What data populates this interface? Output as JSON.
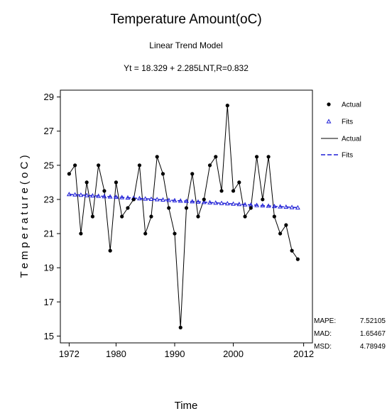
{
  "chart_data": {
    "type": "line",
    "title": "Temperature Amount(oC)",
    "subtitle": "Linear Trend Model",
    "equation": "Yt = 18.329 + 2.285LNT,R=0.832",
    "xlabel": "Time",
    "ylabel": "T e m p e r a t u r e ( o C )",
    "xlim": [
      1970.5,
      2013.5
    ],
    "ylim": [
      14.6,
      29.4
    ],
    "xticks": [
      1972,
      1980,
      1990,
      2000,
      2012
    ],
    "yticks": [
      15,
      17,
      19,
      21,
      23,
      25,
      27,
      29
    ],
    "grid": false,
    "legend_position": "right",
    "colors": {
      "actual": "#000000",
      "fits": "#1f1fd6"
    },
    "x": [
      1972,
      1973,
      1974,
      1975,
      1976,
      1977,
      1978,
      1979,
      1980,
      1981,
      1982,
      1983,
      1984,
      1985,
      1986,
      1987,
      1988,
      1989,
      1990,
      1991,
      1992,
      1993,
      1994,
      1995,
      1996,
      1997,
      1998,
      1999,
      2000,
      2001,
      2002,
      2003,
      2004,
      2005,
      2006,
      2007,
      2008,
      2009,
      2010,
      2011
    ],
    "series": [
      {
        "name": "Actual",
        "marker": "dot",
        "values": [
          24.5,
          25.0,
          21.0,
          24.0,
          22.0,
          25.0,
          23.5,
          20.0,
          24.0,
          22.0,
          22.5,
          23.0,
          25.0,
          21.0,
          22.0,
          25.5,
          24.5,
          22.5,
          21.0,
          15.5,
          22.5,
          24.5,
          22.0,
          23.0,
          25.0,
          25.5,
          23.5,
          28.5,
          23.5,
          24.0,
          22.0,
          22.5,
          25.5,
          23.0,
          25.5,
          22.0,
          21.0,
          21.5,
          20.0,
          19.5
        ]
      },
      {
        "name": "Fits",
        "marker": "triangle",
        "style": "dashed",
        "values": [
          23.3,
          23.28,
          23.26,
          23.24,
          23.22,
          23.2,
          23.18,
          23.16,
          23.14,
          23.12,
          23.1,
          23.08,
          23.06,
          23.04,
          23.02,
          23.0,
          22.98,
          22.96,
          22.94,
          22.92,
          22.9,
          22.88,
          22.86,
          22.84,
          22.82,
          22.8,
          22.78,
          22.76,
          22.74,
          22.72,
          22.7,
          22.68,
          22.66,
          22.64,
          22.62,
          22.6,
          22.58,
          22.56,
          22.54,
          22.52
        ]
      }
    ],
    "legend": [
      {
        "label": "Actual",
        "kind": "marker-dot"
      },
      {
        "label": "Fits",
        "kind": "marker-triangle"
      },
      {
        "label": "Actual",
        "kind": "line-solid"
      },
      {
        "label": "Fits",
        "kind": "line-dashed"
      }
    ],
    "accuracy": [
      {
        "label": "MAPE:",
        "value": "7.52105"
      },
      {
        "label": "MAD:",
        "value": "1.65467"
      },
      {
        "label": "MSD:",
        "value": "4.78949"
      }
    ]
  }
}
